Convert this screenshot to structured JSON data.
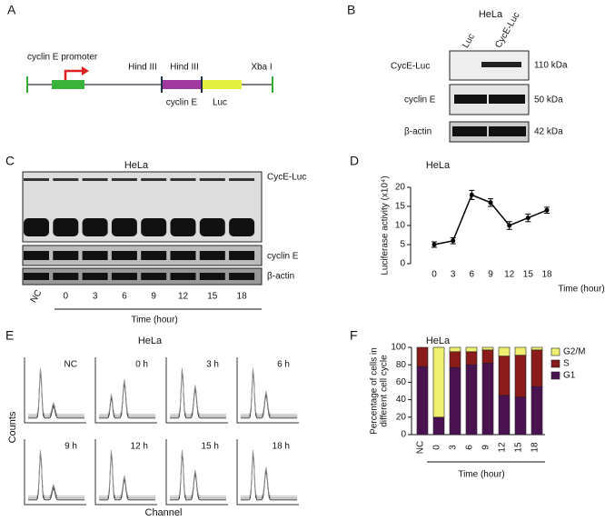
{
  "figure": {
    "panel_a": {
      "label": "A",
      "promoter": "cyclin E promoter",
      "site_1": "Hind III",
      "site_2": "Hind III",
      "site_3": "Xba I",
      "insert_1": "cyclin E",
      "insert_2": "Luc"
    },
    "panel_b": {
      "label": "B",
      "title": "HeLa",
      "lanes": [
        "Luc",
        "CycE-Luc"
      ],
      "rows": [
        "CycE-Luc",
        "cyclin E",
        "β-actin"
      ],
      "sizes": [
        "110 kDa",
        "50 kDa",
        "42 kDa"
      ]
    },
    "panel_c": {
      "label": "C",
      "title": "HeLa",
      "rows": [
        "CycE-Luc",
        "cyclin E",
        "β-actin"
      ],
      "lanes": [
        "NC",
        "0",
        "3",
        "6",
        "9",
        "12",
        "15",
        "18"
      ],
      "x_label": "Time (hour)"
    },
    "panel_e": {
      "label": "E",
      "title": "HeLa",
      "panels": [
        "NC",
        "0 h",
        "3 h",
        "6 h",
        "9 h",
        "12 h",
        "15 h",
        "18 h"
      ],
      "y_label": "Counts",
      "x_label": "Channel"
    }
  },
  "chart_data": [
    {
      "type": "line",
      "panel_label": "D",
      "title": "HeLa",
      "y_label": "Luciferase activity (x10⁴)",
      "x_label": "Time (hour)",
      "categories": [
        "0",
        "3",
        "6",
        "9",
        "12",
        "15",
        "18"
      ],
      "series": [
        {
          "color": "#000000",
          "values": [
            5,
            6,
            18,
            16,
            10,
            12,
            14
          ],
          "errors": [
            0.7,
            0.8,
            1.2,
            1,
            1,
            1,
            0.8
          ]
        }
      ],
      "ylim": [
        0,
        20
      ],
      "yticks": [
        0,
        5,
        10,
        15,
        20
      ]
    },
    {
      "type": "bar",
      "stacked": true,
      "panel_label": "F",
      "title": "HeLa",
      "y_label": [
        "Percentage of cells in",
        "different cell cycle"
      ],
      "x_label": "Time (hour)",
      "categories": [
        "NC",
        "0",
        "3",
        "6",
        "9",
        "12",
        "15",
        "18"
      ],
      "series": [
        {
          "name": "G1",
          "color": "#4a1250",
          "values": [
            78,
            20,
            77,
            80,
            82,
            45,
            43,
            55
          ]
        },
        {
          "name": "S",
          "color": "#8b1a1a",
          "values": [
            22,
            0,
            18,
            15,
            15,
            45,
            48,
            42
          ]
        },
        {
          "name": "G2/M",
          "color": "#f0f070",
          "values": [
            0,
            80,
            5,
            5,
            3,
            10,
            9,
            3
          ]
        }
      ],
      "ylim": [
        0,
        100
      ],
      "yticks": [
        0,
        20,
        40,
        60,
        80,
        100
      ]
    }
  ]
}
